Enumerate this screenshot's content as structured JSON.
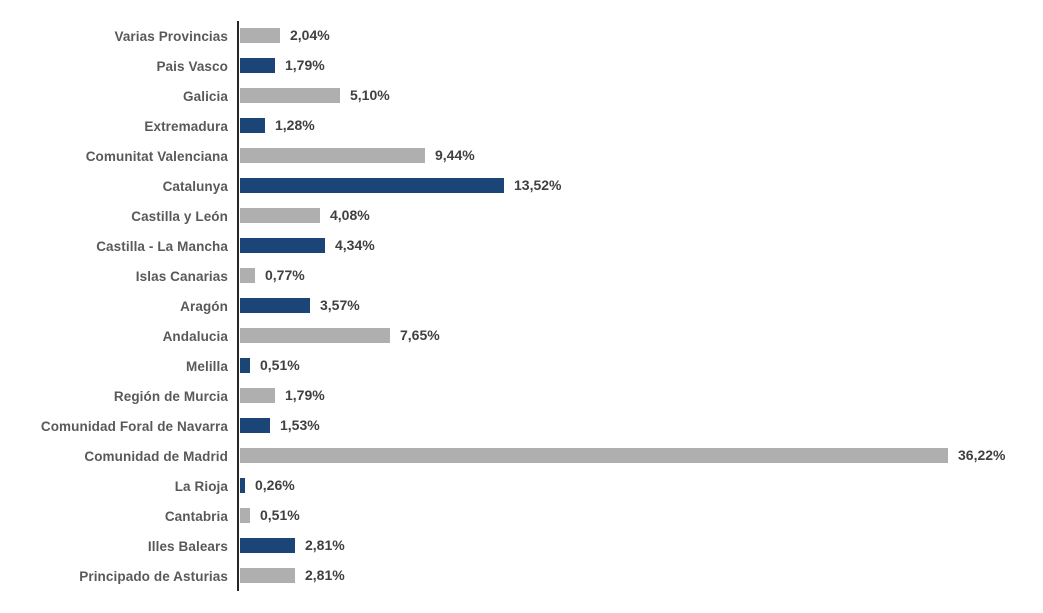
{
  "chart_data": {
    "type": "bar",
    "orientation": "horizontal",
    "title": "",
    "xlabel": "",
    "ylabel": "",
    "xlim": [
      0,
      36.5
    ],
    "grid": false,
    "legend": null,
    "categories": [
      "Varias Provincias",
      "Pais Vasco",
      "Galicia",
      "Extremadura",
      "Comunitat Valenciana",
      "Catalunya",
      "Castilla y León",
      "Castilla - La Mancha",
      "Islas Canarias",
      "Aragón",
      "Andalucia",
      "Melilla",
      "Región de Murcia",
      "Comunidad Foral de Navarra",
      "Comunidad de Madrid",
      "La Rioja",
      "Cantabria",
      "Illes Balears",
      "Principado de Asturias"
    ],
    "values": [
      2.04,
      1.79,
      5.1,
      1.28,
      9.44,
      13.52,
      4.08,
      4.34,
      0.77,
      3.57,
      7.65,
      0.51,
      1.79,
      1.53,
      36.22,
      0.26,
      0.51,
      2.81,
      2.81
    ],
    "value_labels": [
      "2,04%",
      "1,79%",
      "5,10%",
      "1,28%",
      "9,44%",
      "13,52%",
      "4,08%",
      "4,34%",
      "0,77%",
      "3,57%",
      "7,65%",
      "0,51%",
      "1,79%",
      "1,53%",
      "36,22%",
      "0,26%",
      "0,51%",
      "2,81%",
      "2,81%"
    ],
    "bar_color_keys": [
      "gray",
      "blue",
      "gray",
      "blue",
      "gray",
      "blue",
      "gray",
      "blue",
      "gray",
      "blue",
      "gray",
      "blue",
      "gray",
      "blue",
      "gray",
      "blue",
      "gray",
      "blue",
      "gray"
    ],
    "palette": {
      "gray": "#AFAFAF",
      "blue": "#1B4576"
    },
    "axis_line_color": "#262626",
    "category_label_color": "#595959",
    "value_label_color": "#404040"
  }
}
